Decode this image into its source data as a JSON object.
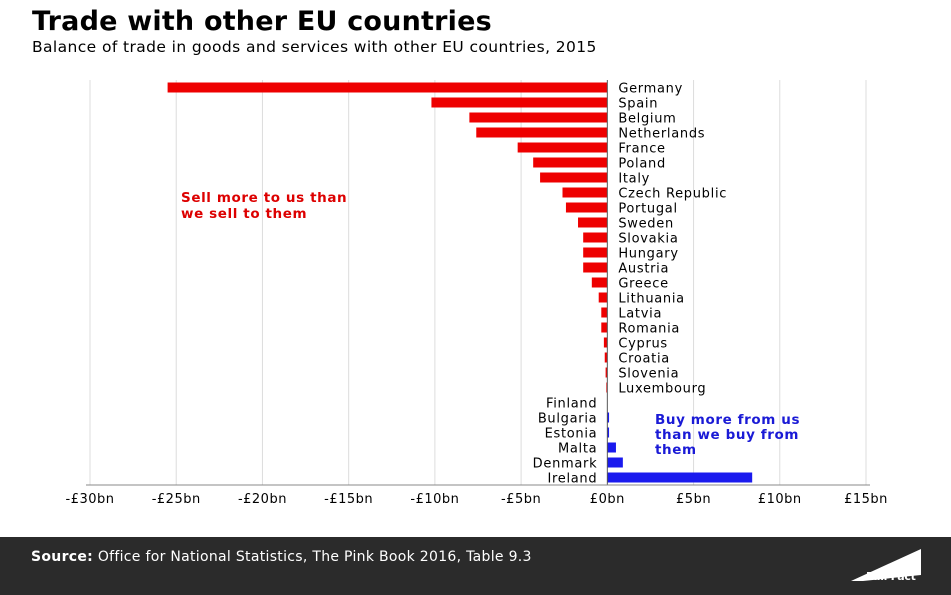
{
  "header": {
    "title": "Trade with other EU countries",
    "subtitle": "Balance of trade in goods and services with other EU countries, 2015"
  },
  "chart_data": {
    "type": "bar",
    "orientation": "horizontal",
    "title": "Trade with other EU countries",
    "subtitle": "Balance of trade in goods and services with other EU countries, 2015",
    "xlabel": "",
    "ylabel": "",
    "xlim": [
      -30,
      15
    ],
    "unit": "£bn",
    "categories": [
      "Germany",
      "Spain",
      "Belgium",
      "Netherlands",
      "France",
      "Poland",
      "Italy",
      "Czech Republic",
      "Portugal",
      "Sweden",
      "Slovakia",
      "Hungary",
      "Austria",
      "Greece",
      "Lithuania",
      "Latvia",
      "Romania",
      "Cyprus",
      "Croatia",
      "Slovenia",
      "Luxembourg",
      "Finland",
      "Bulgaria",
      "Estonia",
      "Malta",
      "Denmark",
      "Ireland"
    ],
    "values": [
      -25.5,
      -10.2,
      -8.0,
      -7.6,
      -5.2,
      -4.3,
      -3.9,
      -2.6,
      -2.4,
      -1.7,
      -1.4,
      -1.4,
      -1.4,
      -0.9,
      -0.5,
      -0.35,
      -0.35,
      -0.2,
      -0.15,
      -0.1,
      -0.05,
      0,
      0.1,
      0.1,
      0.5,
      0.9,
      8.4
    ],
    "x_ticks": [
      -30,
      -25,
      -20,
      -15,
      -10,
      -5,
      0,
      5,
      10,
      15
    ],
    "x_tick_labels": [
      "-£30bn",
      "-£25bn",
      "-£20bn",
      "-£15bn",
      "-£10bn",
      "-£5bn",
      "£0bn",
      "£5bn",
      "£10bn",
      "£15bn"
    ],
    "grid": true,
    "colors": {
      "negative": "#ee0000",
      "positive": "#1a1aee"
    },
    "annotations": [
      {
        "lines": [
          "Sell more to us than",
          "we sell to them"
        ],
        "color": "#dd0000"
      },
      {
        "lines": [
          "Buy more from us",
          "than we buy from",
          "them"
        ],
        "color": "#1a1ad6"
      }
    ]
  },
  "footer": {
    "source_label": "Source:",
    "source_text": "Office for National Statistics, The Pink Book 2016, Table 9.3",
    "logo_text": "Full Fact"
  }
}
